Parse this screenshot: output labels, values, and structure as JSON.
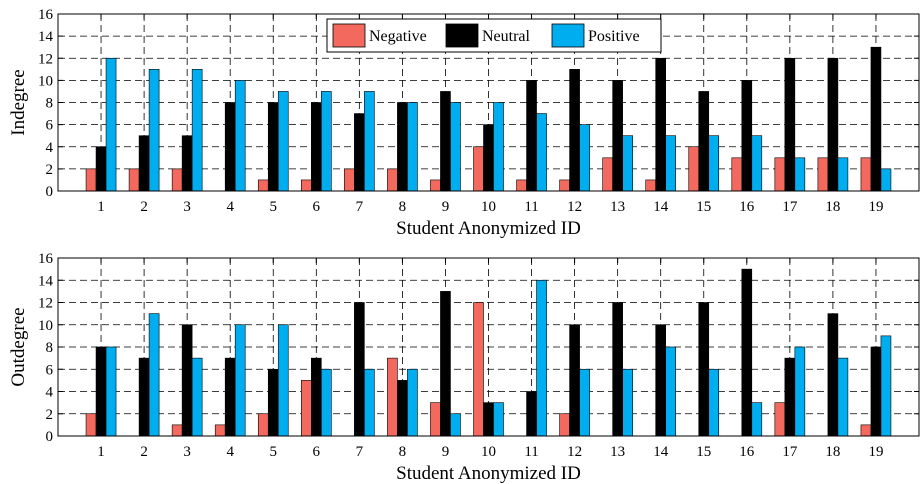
{
  "chart_data": [
    {
      "type": "bar",
      "xlabel": "Student Anonymized ID",
      "ylabel": "Indegree",
      "ylim": [
        0,
        16
      ],
      "yticks": [
        0,
        2,
        4,
        6,
        8,
        10,
        12,
        14,
        16
      ],
      "grid": true,
      "legend_position": "top-center",
      "categories": [
        "1",
        "2",
        "3",
        "4",
        "5",
        "6",
        "7",
        "8",
        "9",
        "10",
        "11",
        "12",
        "13",
        "14",
        "15",
        "16",
        "17",
        "18",
        "19"
      ],
      "series": [
        {
          "name": "Negative",
          "color": "#f4695e",
          "values": [
            2,
            2,
            2,
            0,
            1,
            1,
            2,
            2,
            1,
            4,
            1,
            1,
            3,
            1,
            4,
            3,
            3,
            3,
            3
          ]
        },
        {
          "name": "Neutral",
          "color": "#000000",
          "values": [
            4,
            5,
            5,
            8,
            8,
            8,
            7,
            8,
            9,
            6,
            10,
            11,
            10,
            12,
            9,
            10,
            12,
            12,
            13
          ]
        },
        {
          "name": "Positive",
          "color": "#00aeef",
          "values": [
            12,
            11,
            11,
            10,
            9,
            9,
            9,
            8,
            8,
            8,
            7,
            6,
            5,
            5,
            5,
            5,
            3,
            3,
            2
          ]
        }
      ]
    },
    {
      "type": "bar",
      "xlabel": "Student Anonymized ID",
      "ylabel": "Outdegree",
      "ylim": [
        0,
        16
      ],
      "yticks": [
        0,
        2,
        4,
        6,
        8,
        10,
        12,
        14,
        16
      ],
      "grid": true,
      "categories": [
        "1",
        "2",
        "3",
        "4",
        "5",
        "6",
        "7",
        "8",
        "9",
        "10",
        "11",
        "12",
        "13",
        "14",
        "15",
        "16",
        "17",
        "18",
        "19"
      ],
      "series": [
        {
          "name": "Negative",
          "color": "#f4695e",
          "values": [
            2,
            0,
            1,
            1,
            2,
            5,
            0,
            7,
            3,
            12,
            0,
            2,
            0,
            0,
            0,
            0,
            3,
            0,
            1
          ]
        },
        {
          "name": "Neutral",
          "color": "#000000",
          "values": [
            8,
            7,
            10,
            7,
            6,
            7,
            12,
            5,
            13,
            3,
            4,
            10,
            12,
            10,
            12,
            15,
            7,
            11,
            8
          ]
        },
        {
          "name": "Positive",
          "color": "#00aeef",
          "values": [
            8,
            11,
            7,
            10,
            10,
            6,
            6,
            6,
            2,
            3,
            14,
            6,
            6,
            8,
            6,
            3,
            8,
            7,
            9
          ]
        }
      ]
    }
  ]
}
